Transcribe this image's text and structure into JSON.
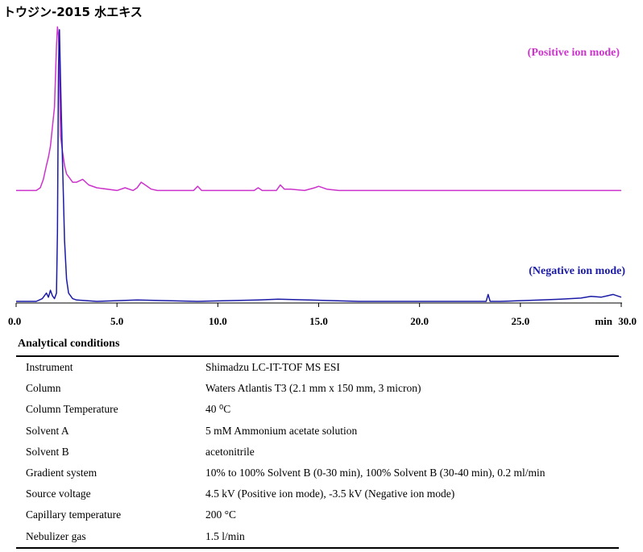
{
  "title": "トウジン-2015 水エキス",
  "annotations": {
    "positive": "(Positive ion mode)",
    "negative": "(Negative ion mode)"
  },
  "chart_data": {
    "type": "line",
    "title": "トウジン-2015 水エキス",
    "xlabel": "min",
    "xlim": [
      0,
      30
    ],
    "ylim": [
      0,
      100
    ],
    "x_ticks": [
      "0.0",
      "5.0",
      "10.0",
      "15.0",
      "20.0",
      "25.0",
      "30.0"
    ],
    "grid": false,
    "series": [
      {
        "name": "(Positive ion mode)",
        "color": "#cc33cc",
        "x": [
          0,
          1.0,
          1.2,
          1.35,
          1.5,
          1.6,
          1.7,
          1.8,
          1.9,
          2.0,
          2.05,
          2.1,
          2.15,
          2.2,
          2.3,
          2.4,
          2.5,
          2.6,
          2.8,
          3.0,
          3.3,
          3.6,
          4.0,
          5.0,
          5.4,
          5.8,
          6.0,
          6.2,
          6.4,
          6.7,
          7.0,
          8.8,
          9.0,
          9.2,
          11.0,
          11.8,
          12.0,
          12.2,
          12.9,
          13.1,
          13.3,
          13.6,
          14.3,
          14.8,
          15.0,
          15.4,
          16.0,
          20.0,
          25.0,
          30.0
        ],
        "y": [
          40,
          40,
          41,
          44,
          49,
          52,
          56,
          63,
          70,
          92,
          99,
          96,
          82,
          60,
          54,
          49,
          46,
          45,
          43,
          43,
          44,
          42,
          41,
          40,
          41,
          40,
          41,
          43,
          42,
          40.5,
          40,
          40,
          41.5,
          40,
          40,
          40,
          41,
          40,
          40,
          42,
          40.5,
          40.5,
          40,
          41,
          41.5,
          40.5,
          40,
          40,
          40,
          40
        ]
      },
      {
        "name": "(Negative ion mode)",
        "color": "#1a1aa6",
        "x": [
          0,
          1.0,
          1.3,
          1.5,
          1.6,
          1.7,
          1.8,
          1.9,
          2.0,
          2.05,
          2.1,
          2.15,
          2.2,
          2.3,
          2.4,
          2.5,
          2.6,
          2.8,
          3.0,
          4.0,
          6.0,
          9.0,
          12.0,
          13.0,
          14.5,
          17.0,
          20.0,
          23.3,
          23.4,
          23.5,
          24.0,
          26.0,
          27.0,
          28.0,
          28.5,
          29.0,
          29.3,
          29.6,
          30.0
        ],
        "y": [
          0,
          0,
          1,
          3,
          1.5,
          4,
          2,
          1,
          3,
          25,
          85,
          98,
          80,
          50,
          22,
          8,
          3,
          1,
          0.5,
          0,
          0.5,
          0,
          0.5,
          0.8,
          0.5,
          0,
          0,
          0,
          2.5,
          0,
          0,
          0.5,
          0.8,
          1.2,
          1.8,
          1.5,
          2.0,
          2.5,
          1.5
        ]
      }
    ]
  },
  "conditions": {
    "heading": "Analytical conditions",
    "rows": [
      {
        "label": "Instrument",
        "value": "Shimadzu LC-IT-TOF MS ESI"
      },
      {
        "label": "Column",
        "value": "Waters Atlantis T3 (2.1 mm x 150 mm, 3 micron)"
      },
      {
        "label": "Column Temperature",
        "value": "40 ⁰C"
      },
      {
        "label": "Solvent A",
        "value": "5 mM Ammonium acetate solution"
      },
      {
        "label": "Solvent B",
        "value": "acetonitrile"
      },
      {
        "label": "Gradient system",
        "value": "10% to 100% Solvent B (0-30 min), 100% Solvent B (30-40 min), 0.2 ml/min"
      },
      {
        "label": "Source voltage",
        "value": "4.5 kV (Positive ion mode), -3.5 kV (Negative ion mode)"
      },
      {
        "label": "Capillary temperature",
        "value": "200 °C"
      },
      {
        "label": "Nebulizer gas",
        "value": "1.5 l/min"
      }
    ]
  }
}
